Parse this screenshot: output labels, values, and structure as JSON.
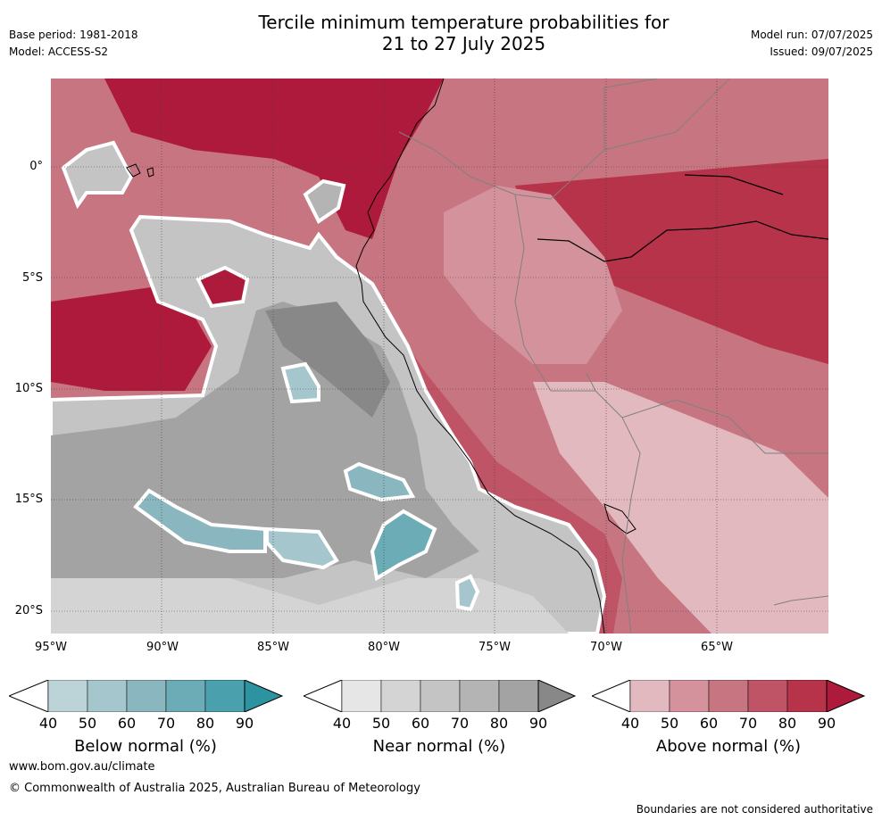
{
  "header": {
    "title_line1": "Tercile minimum temperature probabilities for",
    "title_line2": "21 to 27 July 2025",
    "base_period": "Base period: 1981-2018",
    "model": "Model: ACCESS-S2",
    "model_run": "Model run: 07/07/2025",
    "issued": "Issued: 09/07/2025"
  },
  "map": {
    "lat_labels": [
      "0°",
      "5°S",
      "10°S",
      "15°S",
      "20°S"
    ],
    "lon_labels": [
      "95°W",
      "90°W",
      "85°W",
      "80°W",
      "75°W",
      "70°W",
      "65°W"
    ]
  },
  "legends": [
    {
      "name": "below",
      "label": "Below normal (%)",
      "ticks": [
        "40",
        "50",
        "60",
        "70",
        "80",
        "90"
      ],
      "colors": [
        "#bcd3d8",
        "#a5c6cc",
        "#89b6bf",
        "#6cacb6",
        "#4aa0ad",
        "#2d93a1"
      ]
    },
    {
      "name": "near",
      "label": "Near normal (%)",
      "ticks": [
        "40",
        "50",
        "60",
        "70",
        "80",
        "90"
      ],
      "colors": [
        "#e6e6e6",
        "#d4d4d4",
        "#c4c4c4",
        "#b4b4b4",
        "#a3a3a3",
        "#888888"
      ]
    },
    {
      "name": "above",
      "label": "Above normal (%)",
      "ticks": [
        "40",
        "50",
        "60",
        "70",
        "80",
        "90"
      ],
      "colors": [
        "#e2b9bf",
        "#d4939c",
        "#c77581",
        "#bf5466",
        "#b6334a",
        "#ae1a3b"
      ]
    }
  ],
  "footer": {
    "url": "www.bom.gov.au/climate",
    "copyright": "© Commonwealth of Australia 2025, Australian Bureau of Meteorology",
    "disclaimer": "Boundaries are not considered authoritative"
  }
}
